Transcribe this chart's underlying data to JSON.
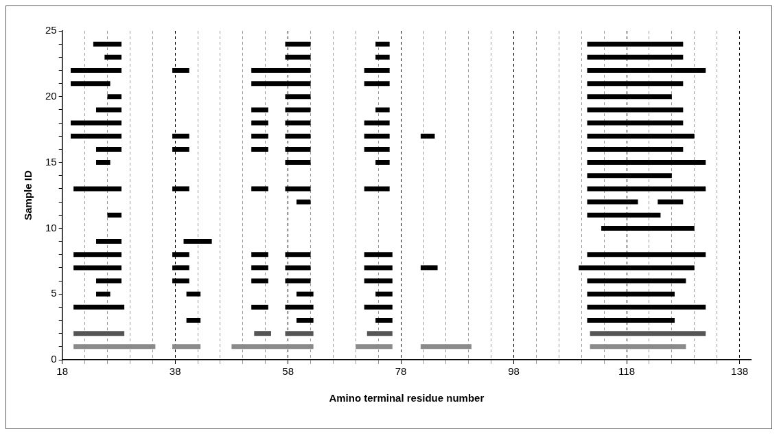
{
  "chart_data": {
    "type": "line",
    "xlabel": "Amino terminal residue number",
    "ylabel": "Sample ID",
    "xlim": [
      18,
      140
    ],
    "xticks": [
      18,
      {
        "value": 22,
        "label": null
      },
      {
        "value": 26,
        "label": null
      },
      {
        "value": 30,
        "label": null
      },
      {
        "value": 34,
        "label": null
      },
      38,
      {
        "value": 42,
        "label": null
      },
      {
        "value": 46,
        "label": null
      },
      {
        "value": 50,
        "label": null
      },
      {
        "value": 54,
        "label": null
      },
      58,
      {
        "value": 62,
        "label": null
      },
      {
        "value": 66,
        "label": null
      },
      {
        "value": 70,
        "label": null
      },
      {
        "value": 74,
        "label": null
      },
      78,
      {
        "value": 82,
        "label": null
      },
      {
        "value": 86,
        "label": null
      },
      {
        "value": 90,
        "label": null
      },
      {
        "value": 94,
        "label": null
      },
      98,
      {
        "value": 102,
        "label": null
      },
      {
        "value": 106,
        "label": null
      },
      {
        "value": 110,
        "label": null
      },
      {
        "value": 114,
        "label": null
      },
      118,
      {
        "value": 122,
        "label": null
      },
      {
        "value": 126,
        "label": null
      },
      {
        "value": 130,
        "label": null
      },
      {
        "value": 134,
        "label": null
      },
      138
    ],
    "ylim": [
      0,
      25
    ],
    "yticks": [
      0,
      {
        "value": 1,
        "label": null
      },
      {
        "value": 2,
        "label": null
      },
      {
        "value": 3,
        "label": null
      },
      {
        "value": 4,
        "label": null
      },
      5,
      {
        "value": 6,
        "label": null
      },
      {
        "value": 7,
        "label": null
      },
      {
        "value": 8,
        "label": null
      },
      {
        "value": 9,
        "label": null
      },
      10,
      {
        "value": 11,
        "label": null
      },
      {
        "value": 12,
        "label": null
      },
      {
        "value": 13,
        "label": null
      },
      {
        "value": 14,
        "label": null
      },
      15,
      {
        "value": 16,
        "label": null
      },
      {
        "value": 17,
        "label": null
      },
      {
        "value": 18,
        "label": null
      },
      {
        "value": 19,
        "label": null
      },
      20,
      {
        "value": 21,
        "label": null
      },
      {
        "value": 22,
        "label": null
      },
      {
        "value": 23,
        "label": null
      },
      {
        "value": 24,
        "label": null
      },
      25
    ],
    "grid": "x",
    "legend": false,
    "marker": "none",
    "line_style": "solid",
    "series": [
      {
        "x": [
          23.5,
          28.5
        ],
        "values": [
          24,
          24
        ],
        "color": "#000000"
      },
      {
        "x": [
          57.5,
          62
        ],
        "values": [
          24,
          24
        ],
        "color": "#000000"
      },
      {
        "x": [
          73.5,
          76
        ],
        "values": [
          24,
          24
        ],
        "color": "#000000"
      },
      {
        "x": [
          111,
          128
        ],
        "values": [
          24,
          24
        ],
        "color": "#000000"
      },
      {
        "x": [
          25.5,
          28.5
        ],
        "values": [
          23,
          23
        ],
        "color": "#000000"
      },
      {
        "x": [
          57.5,
          62
        ],
        "values": [
          23,
          23
        ],
        "color": "#000000"
      },
      {
        "x": [
          73.5,
          76
        ],
        "values": [
          23,
          23
        ],
        "color": "#000000"
      },
      {
        "x": [
          111,
          128
        ],
        "values": [
          23,
          23
        ],
        "color": "#000000"
      },
      {
        "x": [
          19.5,
          28.5
        ],
        "values": [
          22,
          22
        ],
        "color": "#000000"
      },
      {
        "x": [
          37.5,
          40.5
        ],
        "values": [
          22,
          22
        ],
        "color": "#000000"
      },
      {
        "x": [
          51.5,
          62
        ],
        "values": [
          22,
          22
        ],
        "color": "#000000"
      },
      {
        "x": [
          71.5,
          76
        ],
        "values": [
          22,
          22
        ],
        "color": "#000000"
      },
      {
        "x": [
          111,
          132
        ],
        "values": [
          22,
          22
        ],
        "color": "#000000"
      },
      {
        "x": [
          19.5,
          26.5
        ],
        "values": [
          21,
          21
        ],
        "color": "#000000"
      },
      {
        "x": [
          51.5,
          62
        ],
        "values": [
          21,
          21
        ],
        "color": "#000000"
      },
      {
        "x": [
          71.5,
          76
        ],
        "values": [
          21,
          21
        ],
        "color": "#000000"
      },
      {
        "x": [
          111,
          128
        ],
        "values": [
          21,
          21
        ],
        "color": "#000000"
      },
      {
        "x": [
          26,
          28.5
        ],
        "values": [
          20,
          20
        ],
        "color": "#000000"
      },
      {
        "x": [
          57.5,
          62
        ],
        "values": [
          20,
          20
        ],
        "color": "#000000"
      },
      {
        "x": [
          111,
          126
        ],
        "values": [
          20,
          20
        ],
        "color": "#000000"
      },
      {
        "x": [
          24,
          28.5
        ],
        "values": [
          19,
          19
        ],
        "color": "#000000"
      },
      {
        "x": [
          51.5,
          54.5
        ],
        "values": [
          19,
          19
        ],
        "color": "#000000"
      },
      {
        "x": [
          57.5,
          62
        ],
        "values": [
          19,
          19
        ],
        "color": "#000000"
      },
      {
        "x": [
          73.5,
          76
        ],
        "values": [
          19,
          19
        ],
        "color": "#000000"
      },
      {
        "x": [
          111,
          128
        ],
        "values": [
          19,
          19
        ],
        "color": "#000000"
      },
      {
        "x": [
          19.5,
          28.5
        ],
        "values": [
          18,
          18
        ],
        "color": "#000000"
      },
      {
        "x": [
          51.5,
          54.5
        ],
        "values": [
          18,
          18
        ],
        "color": "#000000"
      },
      {
        "x": [
          57.5,
          62
        ],
        "values": [
          18,
          18
        ],
        "color": "#000000"
      },
      {
        "x": [
          71.5,
          76
        ],
        "values": [
          18,
          18
        ],
        "color": "#000000"
      },
      {
        "x": [
          111,
          128
        ],
        "values": [
          18,
          18
        ],
        "color": "#000000"
      },
      {
        "x": [
          19.5,
          28.5
        ],
        "values": [
          17,
          17
        ],
        "color": "#000000"
      },
      {
        "x": [
          37.5,
          40.5
        ],
        "values": [
          17,
          17
        ],
        "color": "#000000"
      },
      {
        "x": [
          51.5,
          54.5
        ],
        "values": [
          17,
          17
        ],
        "color": "#000000"
      },
      {
        "x": [
          57.5,
          62
        ],
        "values": [
          17,
          17
        ],
        "color": "#000000"
      },
      {
        "x": [
          71.5,
          76
        ],
        "values": [
          17,
          17
        ],
        "color": "#000000"
      },
      {
        "x": [
          81.5,
          84
        ],
        "values": [
          17,
          17
        ],
        "color": "#000000"
      },
      {
        "x": [
          111,
          130
        ],
        "values": [
          17,
          17
        ],
        "color": "#000000"
      },
      {
        "x": [
          24,
          28.5
        ],
        "values": [
          16,
          16
        ],
        "color": "#000000"
      },
      {
        "x": [
          37.5,
          40.5
        ],
        "values": [
          16,
          16
        ],
        "color": "#000000"
      },
      {
        "x": [
          51.5,
          54.5
        ],
        "values": [
          16,
          16
        ],
        "color": "#000000"
      },
      {
        "x": [
          57.5,
          62
        ],
        "values": [
          16,
          16
        ],
        "color": "#000000"
      },
      {
        "x": [
          71.5,
          76
        ],
        "values": [
          16,
          16
        ],
        "color": "#000000"
      },
      {
        "x": [
          111,
          128
        ],
        "values": [
          16,
          16
        ],
        "color": "#000000"
      },
      {
        "x": [
          24,
          26.5
        ],
        "values": [
          15,
          15
        ],
        "color": "#000000"
      },
      {
        "x": [
          57.5,
          62
        ],
        "values": [
          15,
          15
        ],
        "color": "#000000"
      },
      {
        "x": [
          73.5,
          76
        ],
        "values": [
          15,
          15
        ],
        "color": "#000000"
      },
      {
        "x": [
          111,
          132
        ],
        "values": [
          15,
          15
        ],
        "color": "#000000"
      },
      {
        "x": [
          111,
          126
        ],
        "values": [
          14,
          14
        ],
        "color": "#000000"
      },
      {
        "x": [
          20,
          28.5
        ],
        "values": [
          13,
          13
        ],
        "color": "#000000"
      },
      {
        "x": [
          37.5,
          40.5
        ],
        "values": [
          13,
          13
        ],
        "color": "#000000"
      },
      {
        "x": [
          51.5,
          54.5
        ],
        "values": [
          13,
          13
        ],
        "color": "#000000"
      },
      {
        "x": [
          57.5,
          62
        ],
        "values": [
          13,
          13
        ],
        "color": "#000000"
      },
      {
        "x": [
          71.5,
          76
        ],
        "values": [
          13,
          13
        ],
        "color": "#000000"
      },
      {
        "x": [
          111,
          132
        ],
        "values": [
          13,
          13
        ],
        "color": "#000000"
      },
      {
        "x": [
          59.5,
          62
        ],
        "values": [
          12,
          12
        ],
        "color": "#000000"
      },
      {
        "x": [
          111,
          120
        ],
        "values": [
          12,
          12
        ],
        "color": "#000000"
      },
      {
        "x": [
          123.5,
          128
        ],
        "values": [
          12,
          12
        ],
        "color": "#000000"
      },
      {
        "x": [
          26,
          28.5
        ],
        "values": [
          11,
          11
        ],
        "color": "#000000"
      },
      {
        "x": [
          111,
          124
        ],
        "values": [
          11,
          11
        ],
        "color": "#000000"
      },
      {
        "x": [
          113.5,
          130
        ],
        "values": [
          10,
          10
        ],
        "color": "#000000"
      },
      {
        "x": [
          24,
          28.5
        ],
        "values": [
          9,
          9
        ],
        "color": "#000000"
      },
      {
        "x": [
          39.5,
          44.5
        ],
        "values": [
          9,
          9
        ],
        "color": "#000000"
      },
      {
        "x": [
          20,
          28.5
        ],
        "values": [
          8,
          8
        ],
        "color": "#000000"
      },
      {
        "x": [
          37.5,
          40.5
        ],
        "values": [
          8,
          8
        ],
        "color": "#000000"
      },
      {
        "x": [
          51.5,
          54.5
        ],
        "values": [
          8,
          8
        ],
        "color": "#000000"
      },
      {
        "x": [
          57.5,
          62
        ],
        "values": [
          8,
          8
        ],
        "color": "#000000"
      },
      {
        "x": [
          71.5,
          76.5
        ],
        "values": [
          8,
          8
        ],
        "color": "#000000"
      },
      {
        "x": [
          111,
          132
        ],
        "values": [
          8,
          8
        ],
        "color": "#000000"
      },
      {
        "x": [
          20,
          28.5
        ],
        "values": [
          7,
          7
        ],
        "color": "#000000"
      },
      {
        "x": [
          37.5,
          40.5
        ],
        "values": [
          7,
          7
        ],
        "color": "#000000"
      },
      {
        "x": [
          51.5,
          54.5
        ],
        "values": [
          7,
          7
        ],
        "color": "#000000"
      },
      {
        "x": [
          57.5,
          62
        ],
        "values": [
          7,
          7
        ],
        "color": "#000000"
      },
      {
        "x": [
          71.5,
          76.5
        ],
        "values": [
          7,
          7
        ],
        "color": "#000000"
      },
      {
        "x": [
          81.5,
          84.5
        ],
        "values": [
          7,
          7
        ],
        "color": "#000000"
      },
      {
        "x": [
          109.5,
          130
        ],
        "values": [
          7,
          7
        ],
        "color": "#000000"
      },
      {
        "x": [
          24,
          28.5
        ],
        "values": [
          6,
          6
        ],
        "color": "#000000"
      },
      {
        "x": [
          37.5,
          40.5
        ],
        "values": [
          6,
          6
        ],
        "color": "#000000"
      },
      {
        "x": [
          51.5,
          54.5
        ],
        "values": [
          6,
          6
        ],
        "color": "#000000"
      },
      {
        "x": [
          57.5,
          62
        ],
        "values": [
          6,
          6
        ],
        "color": "#000000"
      },
      {
        "x": [
          71.5,
          76.5
        ],
        "values": [
          6,
          6
        ],
        "color": "#000000"
      },
      {
        "x": [
          111,
          128.5
        ],
        "values": [
          6,
          6
        ],
        "color": "#000000"
      },
      {
        "x": [
          24,
          26.5
        ],
        "values": [
          5,
          5
        ],
        "color": "#000000"
      },
      {
        "x": [
          40,
          42.5
        ],
        "values": [
          5,
          5
        ],
        "color": "#000000"
      },
      {
        "x": [
          59.5,
          62.5
        ],
        "values": [
          5,
          5
        ],
        "color": "#000000"
      },
      {
        "x": [
          73.5,
          76.5
        ],
        "values": [
          5,
          5
        ],
        "color": "#000000"
      },
      {
        "x": [
          111,
          126.5
        ],
        "values": [
          5,
          5
        ],
        "color": "#000000"
      },
      {
        "x": [
          20,
          29
        ],
        "values": [
          4,
          4
        ],
        "color": "#000000"
      },
      {
        "x": [
          51.5,
          54.5
        ],
        "values": [
          4,
          4
        ],
        "color": "#000000"
      },
      {
        "x": [
          57.5,
          62.5
        ],
        "values": [
          4,
          4
        ],
        "color": "#000000"
      },
      {
        "x": [
          71.5,
          76.5
        ],
        "values": [
          4,
          4
        ],
        "color": "#000000"
      },
      {
        "x": [
          111,
          132
        ],
        "values": [
          4,
          4
        ],
        "color": "#000000"
      },
      {
        "x": [
          40,
          42.5
        ],
        "values": [
          3,
          3
        ],
        "color": "#000000"
      },
      {
        "x": [
          59.5,
          62.5
        ],
        "values": [
          3,
          3
        ],
        "color": "#000000"
      },
      {
        "x": [
          73.5,
          76.5
        ],
        "values": [
          3,
          3
        ],
        "color": "#000000"
      },
      {
        "x": [
          111,
          126.5
        ],
        "values": [
          3,
          3
        ],
        "color": "#000000"
      },
      {
        "x": [
          20,
          29
        ],
        "values": [
          2,
          2
        ],
        "color": "#555555"
      },
      {
        "x": [
          52,
          55
        ],
        "values": [
          2,
          2
        ],
        "color": "#555555"
      },
      {
        "x": [
          57.5,
          62.5
        ],
        "values": [
          2,
          2
        ],
        "color": "#555555"
      },
      {
        "x": [
          72,
          76.5
        ],
        "values": [
          2,
          2
        ],
        "color": "#555555"
      },
      {
        "x": [
          111.5,
          132
        ],
        "values": [
          2,
          2
        ],
        "color": "#555555"
      },
      {
        "x": [
          20,
          34.5
        ],
        "values": [
          1,
          1
        ],
        "color": "#8a8a8a"
      },
      {
        "x": [
          37.5,
          42.5
        ],
        "values": [
          1,
          1
        ],
        "color": "#8a8a8a"
      },
      {
        "x": [
          48,
          62.5
        ],
        "values": [
          1,
          1
        ],
        "color": "#8a8a8a"
      },
      {
        "x": [
          70,
          76.5
        ],
        "values": [
          1,
          1
        ],
        "color": "#8a8a8a"
      },
      {
        "x": [
          81.5,
          90.5
        ],
        "values": [
          1,
          1
        ],
        "color": "#8a8a8a"
      },
      {
        "x": [
          111.5,
          128.5
        ],
        "values": [
          1,
          1
        ],
        "color": "#8a8a8a"
      }
    ]
  }
}
